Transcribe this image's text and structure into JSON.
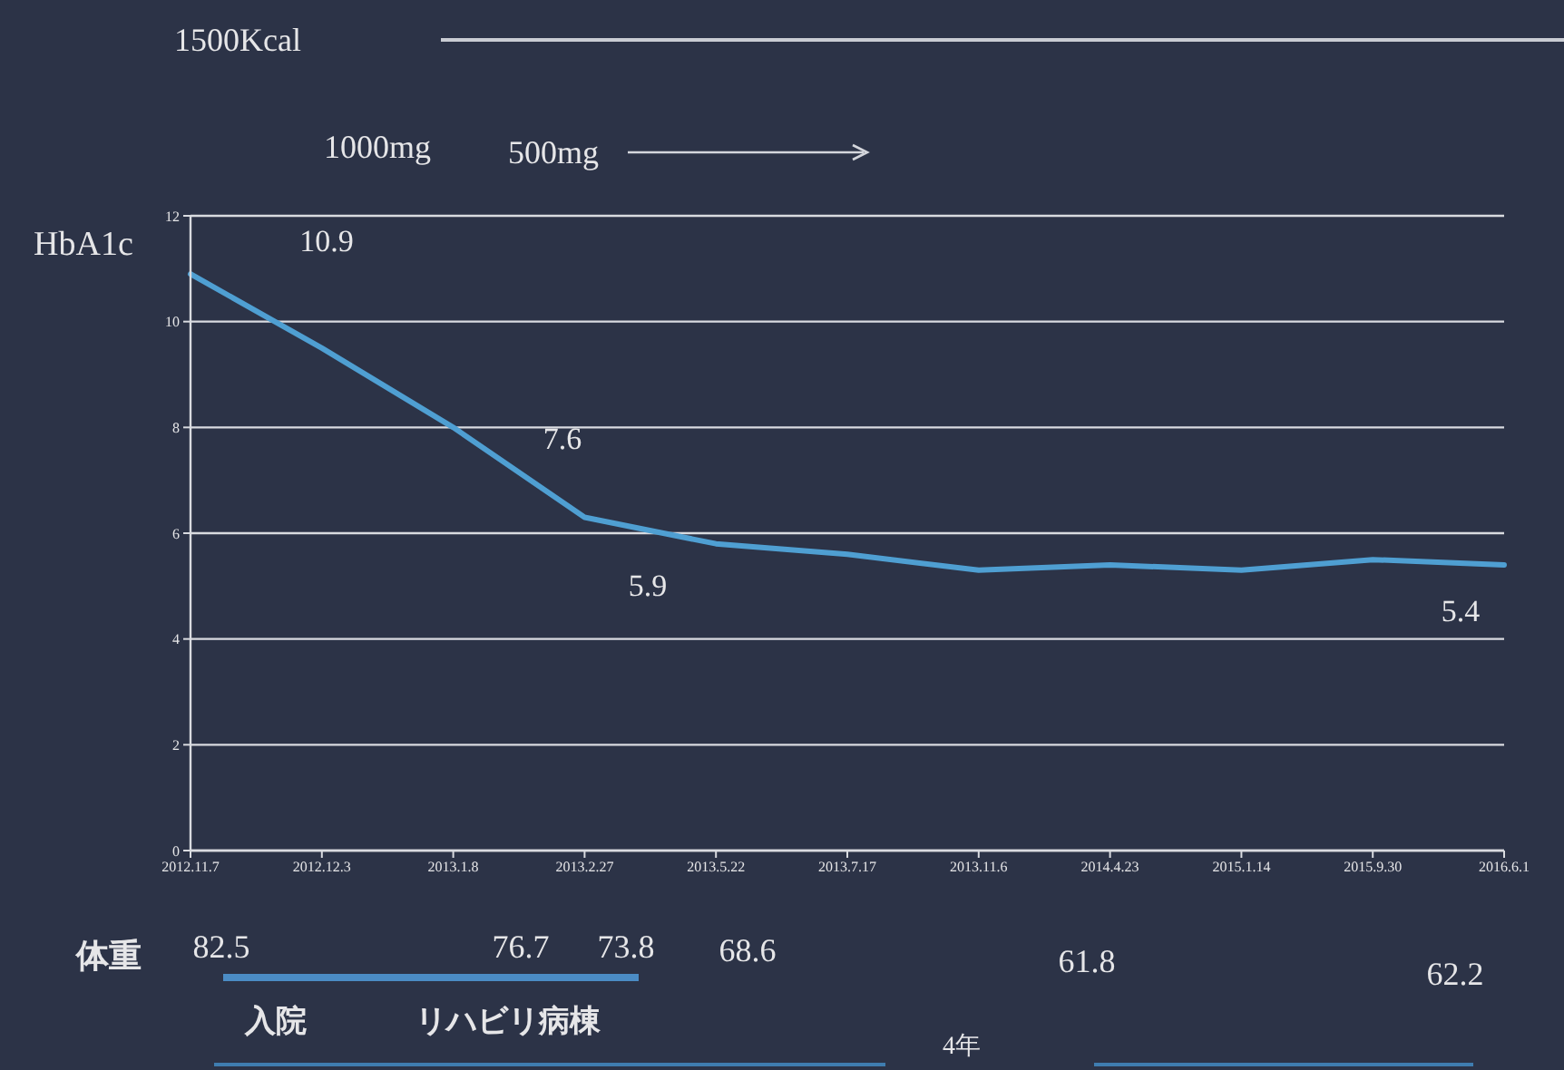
{
  "chart_data": {
    "type": "line",
    "ylabel": "HbA1c",
    "categories": [
      "2012.11.7",
      "2012.12.3",
      "2013.1.8",
      "2013.2.27",
      "2013.5.22",
      "2013.7.17",
      "2013.11.6",
      "2014.4.23",
      "2015.1.14",
      "2015.9.30",
      "2016.6.1"
    ],
    "values": [
      10.9,
      9.5,
      8.0,
      6.3,
      5.8,
      5.6,
      5.3,
      5.4,
      5.3,
      5.5,
      5.4
    ],
    "color": "#4f9fd2",
    "ylim": [
      0,
      12
    ],
    "yticks": [
      0,
      2,
      4,
      6,
      8,
      10,
      12
    ],
    "grid": "y",
    "annotations": [
      "1500Kcal",
      "1000mg",
      "500mg",
      "10.9",
      "7.6",
      "5.9",
      "5.4",
      "体重",
      "82.5",
      "76.7",
      "73.8",
      "68.6",
      "61.8",
      "62.2",
      "入院",
      "リハビリ病棟",
      "4年"
    ]
  }
}
